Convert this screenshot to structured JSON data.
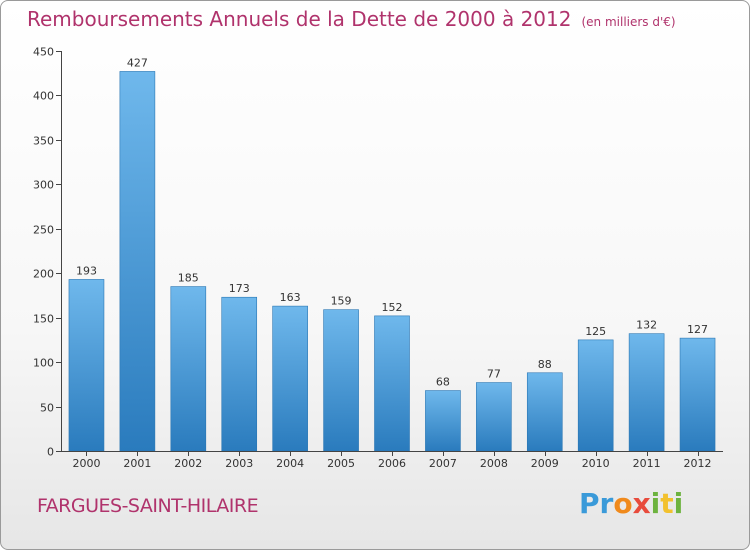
{
  "header": {
    "title": "Remboursements Annuels de la Dette de 2000 à 2012",
    "unit": "(en milliers d'€)"
  },
  "footer": {
    "place": "FARGUES-SAINT-HILAIRE",
    "logo_letters": [
      "P",
      "r",
      "o",
      "x",
      "i",
      "t",
      "i"
    ]
  },
  "colors": {
    "bar_top": "#6fb8ec",
    "bar_bottom": "#2a7bbd",
    "title": "#b0336c"
  },
  "chart_data": {
    "type": "bar",
    "title": "Remboursements Annuels de la Dette de 2000 à 2012",
    "xlabel": "",
    "ylabel": "",
    "categories": [
      "2000",
      "2001",
      "2002",
      "2003",
      "2004",
      "2005",
      "2006",
      "2007",
      "2008",
      "2009",
      "2010",
      "2011",
      "2012"
    ],
    "values": [
      193,
      427,
      185,
      173,
      163,
      159,
      152,
      68,
      77,
      88,
      125,
      132,
      127
    ],
    "ylim": [
      0,
      450
    ],
    "yticks": [
      0,
      50,
      100,
      150,
      200,
      250,
      300,
      350,
      400,
      450
    ],
    "grid": false
  }
}
